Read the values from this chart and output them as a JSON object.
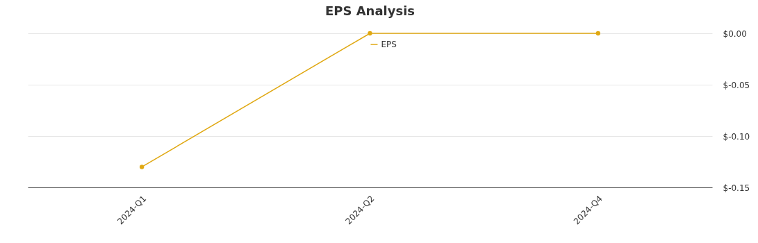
{
  "chart_data": {
    "type": "line",
    "title": "EPS Analysis",
    "categories": [
      "2024-Q1",
      "2024-Q2",
      "2024-Q4"
    ],
    "series": [
      {
        "name": "EPS",
        "color": "#e0a812",
        "values": [
          -0.13,
          0.0,
          0.0
        ]
      }
    ],
    "ylim": [
      -0.15,
      0
    ],
    "yticks": [
      {
        "value": 0,
        "label": "$0.00"
      },
      {
        "value": -0.05,
        "label": "$-0.05"
      },
      {
        "value": -0.1,
        "label": "$-0.10"
      },
      {
        "value": -0.15,
        "label": "$-0.15"
      }
    ],
    "grid": "y",
    "legend": "top",
    "marker": "circle",
    "line_style": "solid"
  }
}
